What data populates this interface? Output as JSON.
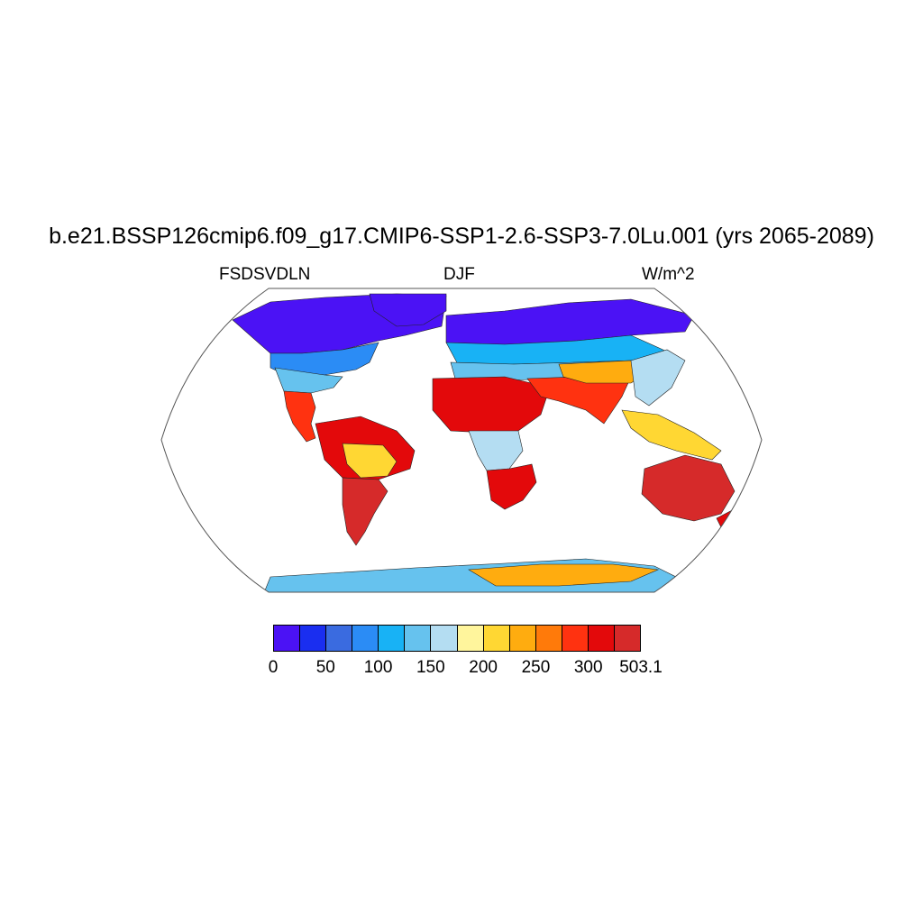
{
  "title": "b.e21.BSSP126cmip6.f09_g17.CMIP6-SSP1-2.6-SSP3-7.0Lu.001 (yrs 2065-2089)",
  "left_string": "FSDSVDLN",
  "center_string": "DJF",
  "right_string": "W/m^2",
  "projection": "Robinson",
  "colorbar": {
    "colors": [
      "#4b12f5",
      "#1a2ef0",
      "#3a6be0",
      "#2b8cf5",
      "#18b2f5",
      "#66c2ee",
      "#b4ddf2",
      "#fff59c",
      "#ffd733",
      "#ffac0f",
      "#ff7a0a",
      "#ff3210",
      "#e3090b",
      "#d62a2a"
    ],
    "labels": [
      "0",
      "50",
      "100",
      "150",
      "200",
      "250",
      "300",
      "503.1"
    ]
  },
  "chart_data": {
    "type": "heatmap",
    "variable": "FSDSVDLN",
    "season": "DJF",
    "units": "W/m^2",
    "levels": [
      0,
      25,
      50,
      75,
      100,
      125,
      150,
      175,
      200,
      225,
      250,
      275,
      300,
      325,
      503.1
    ],
    "labeled_levels": [
      0,
      50,
      100,
      150,
      200,
      250,
      300,
      503.1
    ],
    "regions": [
      {
        "region": "northern-high-latitudes",
        "level": 0
      },
      {
        "region": "north-america-mid",
        "level": 3
      },
      {
        "region": "north-america-south",
        "level": 5
      },
      {
        "region": "europe-mediterranean",
        "level": 5
      },
      {
        "region": "central-america",
        "level": 11
      },
      {
        "region": "south-america-north",
        "level": 12
      },
      {
        "region": "south-america-central",
        "level": 8
      },
      {
        "region": "south-america-south",
        "level": 13
      },
      {
        "region": "north-africa",
        "level": 12
      },
      {
        "region": "central-africa",
        "level": 6
      },
      {
        "region": "southern-africa",
        "level": 12
      },
      {
        "region": "arabia-india",
        "level": 11
      },
      {
        "region": "central-asia",
        "level": 9
      },
      {
        "region": "east-asia",
        "level": 6
      },
      {
        "region": "southeast-asia",
        "level": 8
      },
      {
        "region": "australia",
        "level": 13
      },
      {
        "region": "antarctica-coast",
        "level": 5
      },
      {
        "region": "antarctica-interior",
        "level": 9
      }
    ]
  }
}
